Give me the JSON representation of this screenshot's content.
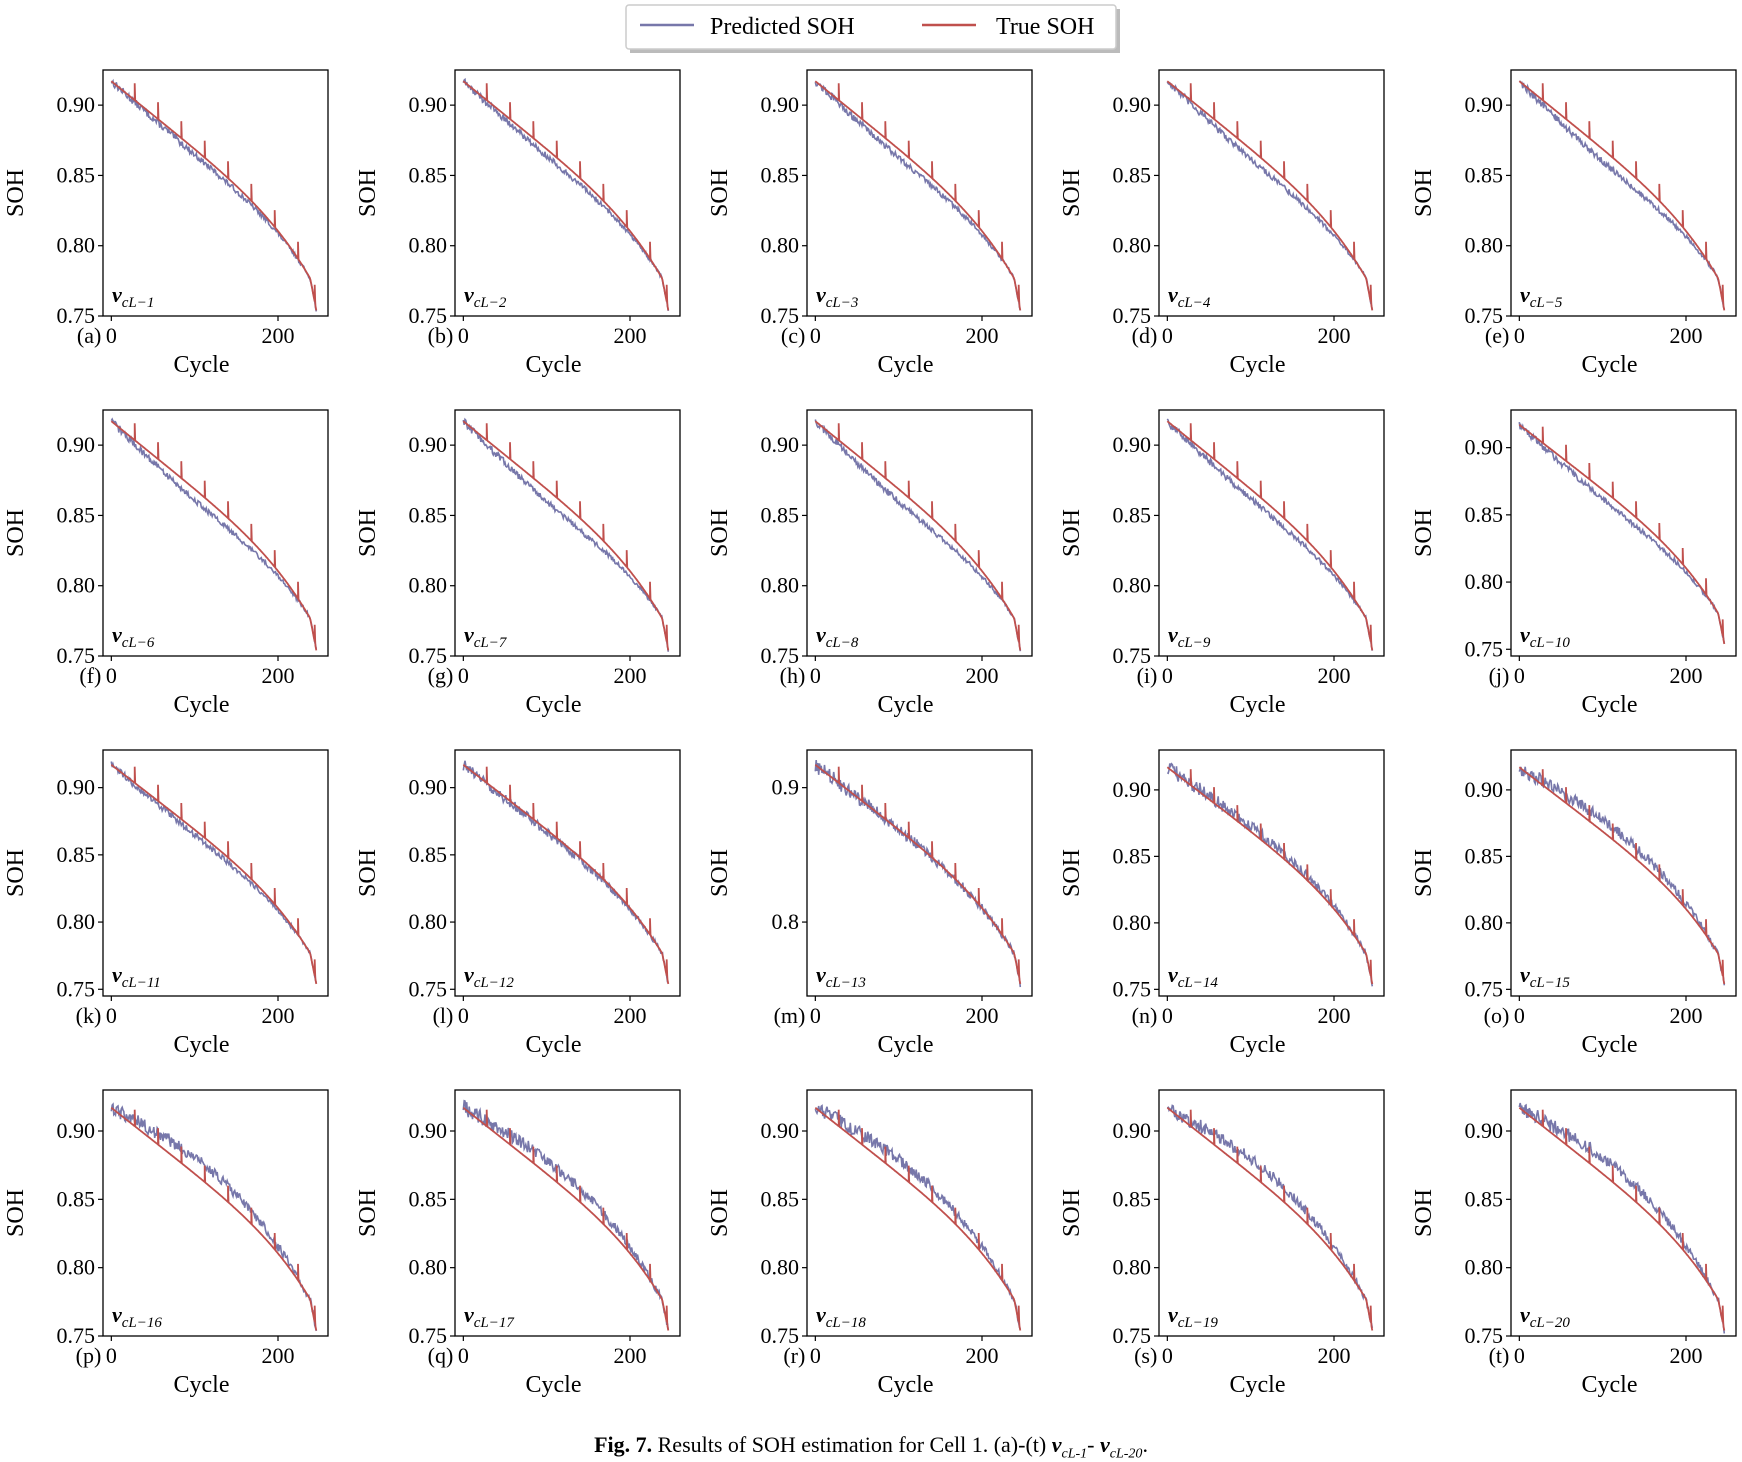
{
  "legend": {
    "items": [
      {
        "label": "Predicted SOH",
        "color": "#7777aa"
      },
      {
        "label": "True SOH",
        "color": "#c0504d"
      }
    ]
  },
  "caption": {
    "fig_label": "Fig. 7.",
    "text": "Results of SOH estimation for Cell 1. (a)-(t)",
    "var_symbol": "v",
    "sub_first": "cL-1",
    "dash": "-",
    "sub_last": "cL-20",
    "end": "."
  },
  "chart_data": {
    "type": "line",
    "grid": "5 columns x 4 rows of subplots",
    "xlabel": "Cycle",
    "ylabel": "SOH",
    "xlim": [
      -10,
      260
    ],
    "xticks": [
      0,
      200
    ],
    "series_colors": {
      "predicted": "#7777aa",
      "true": "#c0504d"
    },
    "true_soh": {
      "start": 0.917,
      "end": 0.755,
      "spike_cycles": [
        28,
        56,
        84,
        112,
        140,
        168,
        196,
        224,
        244
      ],
      "spike_height": 0.012
    },
    "subplots": [
      {
        "panel": "(a)",
        "label": "cL−1",
        "ylim": [
          0.75,
          0.925
        ],
        "yticks": [
          "0.75",
          "0.80",
          "0.85",
          "0.90"
        ],
        "pred_offset": -0.004,
        "noise": 0.002
      },
      {
        "panel": "(b)",
        "label": "cL−2",
        "ylim": [
          0.75,
          0.925
        ],
        "yticks": [
          "0.75",
          "0.80",
          "0.85",
          "0.90"
        ],
        "pred_offset": -0.005,
        "noise": 0.002
      },
      {
        "panel": "(c)",
        "label": "cL−3",
        "ylim": [
          0.75,
          0.925
        ],
        "yticks": [
          "0.75",
          "0.80",
          "0.85",
          "0.90"
        ],
        "pred_offset": -0.006,
        "noise": 0.002
      },
      {
        "panel": "(d)",
        "label": "cL−4",
        "ylim": [
          0.75,
          0.925
        ],
        "yticks": [
          "0.75",
          "0.80",
          "0.85",
          "0.90"
        ],
        "pred_offset": -0.007,
        "noise": 0.002
      },
      {
        "panel": "(e)",
        "label": "cL−5",
        "ylim": [
          0.75,
          0.925
        ],
        "yticks": [
          "0.75",
          "0.80",
          "0.85",
          "0.90"
        ],
        "pred_offset": -0.009,
        "noise": 0.002
      },
      {
        "panel": "(f)",
        "label": "cL−6",
        "ylim": [
          0.75,
          0.925
        ],
        "yticks": [
          "0.75",
          "0.80",
          "0.85",
          "0.90"
        ],
        "pred_offset": -0.008,
        "noise": 0.002
      },
      {
        "panel": "(g)",
        "label": "cL−7",
        "ylim": [
          0.75,
          0.925
        ],
        "yticks": [
          "0.75",
          "0.80",
          "0.85",
          "0.90"
        ],
        "pred_offset": -0.009,
        "noise": 0.002
      },
      {
        "panel": "(h)",
        "label": "cL−8",
        "ylim": [
          0.75,
          0.925
        ],
        "yticks": [
          "0.75",
          "0.80",
          "0.85",
          "0.90"
        ],
        "pred_offset": -0.009,
        "noise": 0.002
      },
      {
        "panel": "(i)",
        "label": "cL−9",
        "ylim": [
          0.75,
          0.925
        ],
        "yticks": [
          "0.75",
          "0.80",
          "0.85",
          "0.90"
        ],
        "pred_offset": -0.007,
        "noise": 0.002
      },
      {
        "panel": "(j)",
        "label": "cL−10",
        "ylim": [
          0.745,
          0.928
        ],
        "yticks": [
          "0.75",
          "0.80",
          "0.85",
          "0.90"
        ],
        "pred_offset": -0.007,
        "noise": 0.002
      },
      {
        "panel": "(k)",
        "label": "cL−11",
        "ylim": [
          0.745,
          0.928
        ],
        "yticks": [
          "0.75",
          "0.80",
          "0.85",
          "0.90"
        ],
        "pred_offset": -0.004,
        "noise": 0.002
      },
      {
        "panel": "(l)",
        "label": "cL−12",
        "ylim": [
          0.745,
          0.928
        ],
        "yticks": [
          "0.75",
          "0.80",
          "0.85",
          "0.90"
        ],
        "pred_offset": -0.002,
        "noise": 0.003
      },
      {
        "panel": "(m)",
        "label": "cL−13",
        "ylim": [
          0.745,
          0.928
        ],
        "yticks": [
          "0.8",
          "0.9"
        ],
        "pred_offset": 0.0,
        "noise": 0.004
      },
      {
        "panel": "(n)",
        "label": "cL−14",
        "ylim": [
          0.745,
          0.93
        ],
        "yticks": [
          "0.75",
          "0.80",
          "0.85",
          "0.90"
        ],
        "pred_offset": 0.004,
        "noise": 0.004
      },
      {
        "panel": "(o)",
        "label": "cL−15",
        "ylim": [
          0.745,
          0.93
        ],
        "yticks": [
          "0.75",
          "0.80",
          "0.85",
          "0.90"
        ],
        "pred_offset": 0.009,
        "noise": 0.004
      },
      {
        "panel": "(p)",
        "label": "cL−16",
        "ylim": [
          0.75,
          0.93
        ],
        "yticks": [
          "0.75",
          "0.80",
          "0.85",
          "0.90"
        ],
        "pred_offset": 0.012,
        "noise": 0.004
      },
      {
        "panel": "(q)",
        "label": "cL−17",
        "ylim": [
          0.75,
          0.93
        ],
        "yticks": [
          "0.75",
          "0.80",
          "0.85",
          "0.90"
        ],
        "pred_offset": 0.01,
        "noise": 0.004
      },
      {
        "panel": "(r)",
        "label": "cL−18",
        "ylim": [
          0.75,
          0.93
        ],
        "yticks": [
          "0.75",
          "0.80",
          "0.85",
          "0.90"
        ],
        "pred_offset": 0.011,
        "noise": 0.004
      },
      {
        "panel": "(s)",
        "label": "cL−19",
        "ylim": [
          0.75,
          0.93
        ],
        "yticks": [
          "0.75",
          "0.80",
          "0.85",
          "0.90"
        ],
        "pred_offset": 0.011,
        "noise": 0.004
      },
      {
        "panel": "(t)",
        "label": "cL−20",
        "ylim": [
          0.75,
          0.93
        ],
        "yticks": [
          "0.75",
          "0.80",
          "0.85",
          "0.90"
        ],
        "pred_offset": 0.012,
        "noise": 0.004
      }
    ]
  }
}
